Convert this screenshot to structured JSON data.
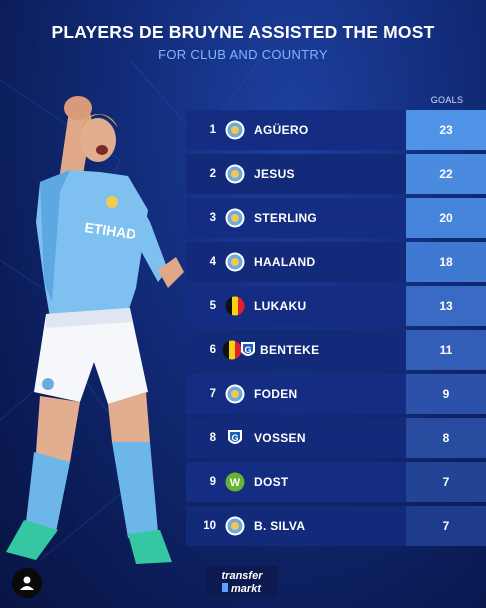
{
  "title": "PLAYERS DE BRUYNE ASSISTED THE MOST",
  "subtitle": "FOR CLUB AND COUNTRY",
  "goals_header": "GOALS",
  "player_kit_text": "ETIHAD",
  "logo": {
    "line1": "transfer",
    "line2": "markt"
  },
  "colors": {
    "man_city": "#6cabdd",
    "belgium_black": "#111111",
    "belgium_yellow": "#f5d315",
    "belgium_red": "#e0202a",
    "genk_blue": "#1d5fb8",
    "wolfsburg_green": "#65b32e"
  },
  "rows": [
    {
      "rank": "1",
      "name": "AGÜERO",
      "goals": "23",
      "badge": "man-city-badge"
    },
    {
      "rank": "2",
      "name": "JESUS",
      "goals": "22",
      "badge": "man-city-badge"
    },
    {
      "rank": "3",
      "name": "STERLING",
      "goals": "20",
      "badge": "man-city-badge"
    },
    {
      "rank": "4",
      "name": "HAALAND",
      "goals": "18",
      "badge": "man-city-badge"
    },
    {
      "rank": "5",
      "name": "LUKAKU",
      "goals": "13",
      "badge": "belgium-flag"
    },
    {
      "rank": "6",
      "name": "BENTEKE",
      "goals": "11",
      "badge": "belgium-genk-badge"
    },
    {
      "rank": "7",
      "name": "FODEN",
      "goals": "9",
      "badge": "man-city-badge"
    },
    {
      "rank": "8",
      "name": "VOSSEN",
      "goals": "8",
      "badge": "genk-badge"
    },
    {
      "rank": "9",
      "name": "DOST",
      "goals": "7",
      "badge": "wolfsburg-badge"
    },
    {
      "rank": "10",
      "name": "B. SILVA",
      "goals": "7",
      "badge": "man-city-badge"
    }
  ]
}
